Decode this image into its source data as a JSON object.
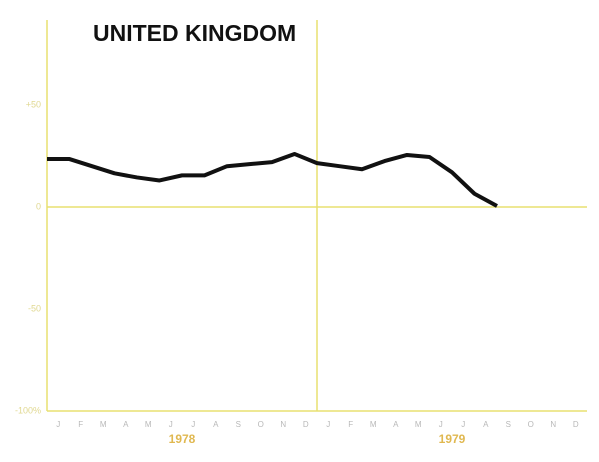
{
  "chart_data": {
    "type": "line",
    "title": "UNITED KINGDOM",
    "categories": [
      "J",
      "F",
      "M",
      "A",
      "M",
      "J",
      "J",
      "A",
      "S",
      "O",
      "N",
      "D",
      "J",
      "F",
      "M",
      "A",
      "M",
      "J",
      "J",
      "A",
      "S",
      "O",
      "N",
      "D"
    ],
    "year_labels": [
      "1978",
      "1979"
    ],
    "xlim": [
      0,
      24
    ],
    "series": [
      {
        "name": "United Kingdom",
        "color": "#111111",
        "x": [
          0,
          1,
          2,
          3,
          4,
          5,
          6,
          7,
          8,
          9,
          10,
          11,
          12,
          13,
          14,
          15,
          16,
          17,
          18,
          19,
          20
        ],
        "values": [
          23.5,
          23.5,
          20,
          16.5,
          14.5,
          13,
          15.5,
          15.5,
          20,
          21,
          22,
          26,
          21.5,
          20,
          18.5,
          22.5,
          25.5,
          24.5,
          17,
          6.5,
          0.5
        ]
      }
    ],
    "ylim": [
      -100,
      100
    ],
    "yticks": [
      {
        "value": -100,
        "label": "-100%"
      },
      -50,
      0,
      {
        "value": 50,
        "label": "+50"
      }
    ],
    "grid": true
  }
}
